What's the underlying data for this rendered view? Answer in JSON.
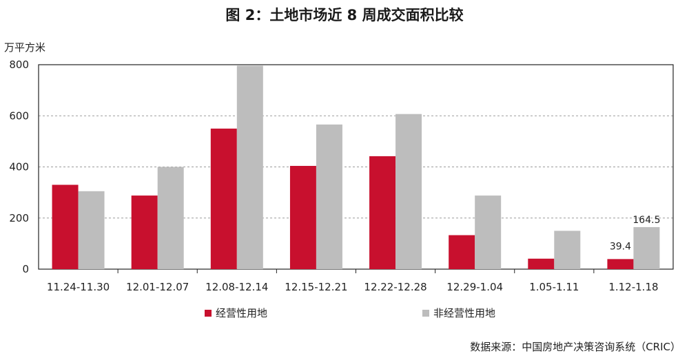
{
  "title": "图 2：土地市场近 8 周成交面积比较",
  "unit_label": "万平方米",
  "source": "数据来源：中国房地产决策咨询系统（CRIC）",
  "colors": {
    "series1": "#c8102e",
    "series2": "#bdbdbd",
    "grid": "#9a9a9a",
    "axis": "#222222"
  },
  "chart_data": {
    "type": "bar",
    "categories": [
      "11.24-11.30",
      "12.01-12.07",
      "12.08-12.14",
      "12.15-12.21",
      "12.22-12.28",
      "12.29-1.04",
      "1.05-1.11",
      "1.12-1.18"
    ],
    "series": [
      {
        "name": "经营性用地",
        "values": [
          330,
          288,
          550,
          404,
          442,
          133,
          41,
          39.4
        ]
      },
      {
        "name": "非经营性用地",
        "values": [
          305,
          400,
          796,
          566,
          607,
          288,
          150,
          164.5
        ]
      }
    ],
    "data_labels": {
      "series1_last": "39.4",
      "series2_last": "164.5"
    },
    "ylim": [
      0,
      800
    ],
    "yticks": [
      0,
      200,
      400,
      600,
      800
    ],
    "grid": true,
    "legend_position": "bottom"
  }
}
